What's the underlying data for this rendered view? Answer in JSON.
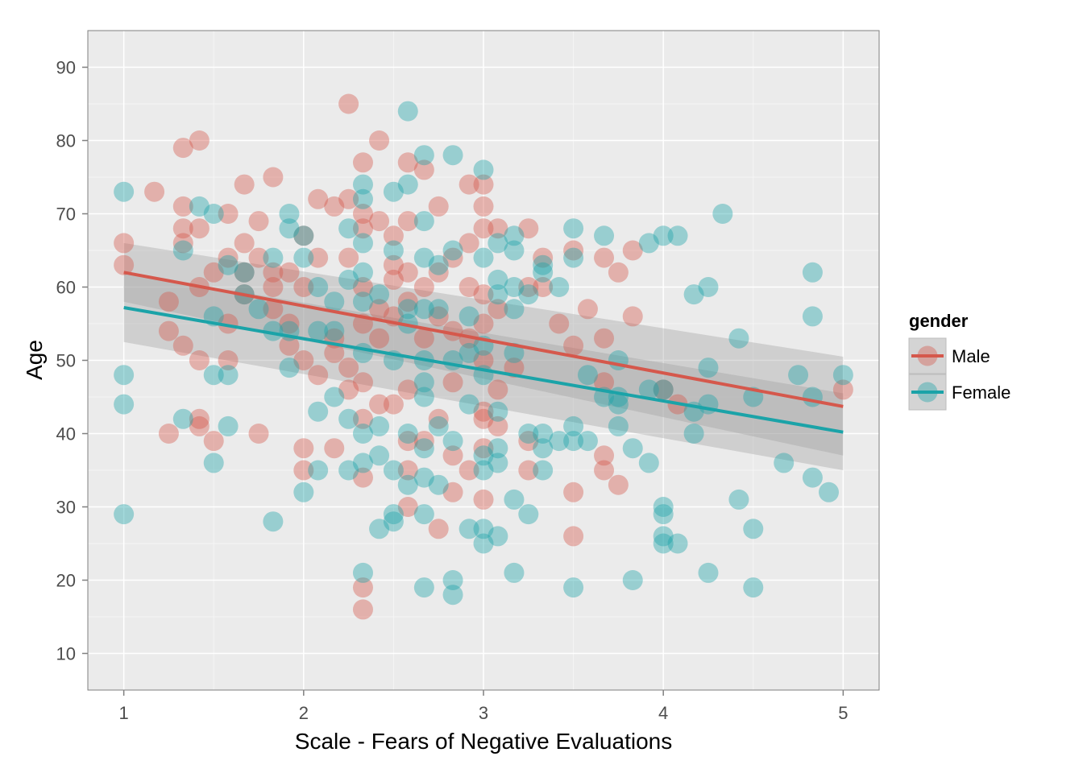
{
  "chart_data": {
    "type": "scatter",
    "xlabel": "Scale - Fears of Negative Evaluations",
    "ylabel": "Age",
    "xlim": [
      0.8,
      5.2
    ],
    "ylim": [
      5,
      95
    ],
    "xticks": [
      "1",
      "2",
      "3",
      "4",
      "5"
    ],
    "yticks": [
      "10",
      "20",
      "30",
      "40",
      "50",
      "60",
      "70",
      "80",
      "90"
    ],
    "grid": true,
    "legend": {
      "title": "gender",
      "position": "right"
    },
    "series": [
      {
        "name": "Male",
        "color": "#D5584C",
        "fit": {
          "x": [
            1,
            5
          ],
          "y": [
            62,
            43.7
          ],
          "ci_lower": [
            58,
            37
          ],
          "ci_upper": [
            66,
            50.5
          ]
        },
        "points": [
          [
            1,
            66
          ],
          [
            1,
            63
          ],
          [
            1.17,
            73
          ],
          [
            1.25,
            58
          ],
          [
            1.25,
            54
          ],
          [
            1.25,
            40
          ],
          [
            1.33,
            79
          ],
          [
            1.33,
            71
          ],
          [
            1.33,
            68
          ],
          [
            1.33,
            66
          ],
          [
            1.33,
            52
          ],
          [
            1.42,
            80
          ],
          [
            1.42,
            68
          ],
          [
            1.42,
            60
          ],
          [
            1.42,
            50
          ],
          [
            1.42,
            42
          ],
          [
            1.42,
            41
          ],
          [
            1.5,
            62
          ],
          [
            1.5,
            39
          ],
          [
            1.58,
            70
          ],
          [
            1.58,
            64
          ],
          [
            1.58,
            55
          ],
          [
            1.58,
            50
          ],
          [
            1.67,
            74
          ],
          [
            1.67,
            66
          ],
          [
            1.67,
            62
          ],
          [
            1.67,
            59
          ],
          [
            1.75,
            69
          ],
          [
            1.75,
            64
          ],
          [
            1.75,
            40
          ],
          [
            1.83,
            75
          ],
          [
            1.83,
            62
          ],
          [
            1.83,
            60
          ],
          [
            1.83,
            57
          ],
          [
            1.92,
            62
          ],
          [
            1.92,
            55
          ],
          [
            1.92,
            52
          ],
          [
            2,
            67
          ],
          [
            2,
            60
          ],
          [
            2,
            50
          ],
          [
            2,
            38
          ],
          [
            2,
            35
          ],
          [
            2.08,
            72
          ],
          [
            2.08,
            64
          ],
          [
            2.08,
            48
          ],
          [
            2.17,
            71
          ],
          [
            2.17,
            53
          ],
          [
            2.17,
            51
          ],
          [
            2.17,
            38
          ],
          [
            2.25,
            85
          ],
          [
            2.25,
            72
          ],
          [
            2.25,
            64
          ],
          [
            2.25,
            49
          ],
          [
            2.25,
            46
          ],
          [
            2.33,
            77
          ],
          [
            2.33,
            70
          ],
          [
            2.33,
            68
          ],
          [
            2.33,
            60
          ],
          [
            2.33,
            55
          ],
          [
            2.33,
            47
          ],
          [
            2.33,
            42
          ],
          [
            2.33,
            34
          ],
          [
            2.33,
            19
          ],
          [
            2.33,
            16
          ],
          [
            2.42,
            80
          ],
          [
            2.42,
            69
          ],
          [
            2.42,
            57
          ],
          [
            2.42,
            53
          ],
          [
            2.42,
            44
          ],
          [
            2.5,
            67
          ],
          [
            2.5,
            63
          ],
          [
            2.5,
            61
          ],
          [
            2.5,
            56
          ],
          [
            2.5,
            44
          ],
          [
            2.58,
            77
          ],
          [
            2.58,
            69
          ],
          [
            2.58,
            62
          ],
          [
            2.58,
            58
          ],
          [
            2.58,
            46
          ],
          [
            2.58,
            39
          ],
          [
            2.58,
            35
          ],
          [
            2.58,
            30
          ],
          [
            2.67,
            76
          ],
          [
            2.67,
            60
          ],
          [
            2.67,
            53
          ],
          [
            2.67,
            39
          ],
          [
            2.75,
            71
          ],
          [
            2.75,
            62
          ],
          [
            2.75,
            56
          ],
          [
            2.75,
            42
          ],
          [
            2.75,
            27
          ],
          [
            2.83,
            64
          ],
          [
            2.83,
            54
          ],
          [
            2.83,
            47
          ],
          [
            2.83,
            37
          ],
          [
            2.83,
            32
          ],
          [
            2.92,
            74
          ],
          [
            2.92,
            66
          ],
          [
            2.92,
            60
          ],
          [
            2.92,
            53
          ],
          [
            2.92,
            35
          ],
          [
            3,
            74
          ],
          [
            3,
            71
          ],
          [
            3,
            68
          ],
          [
            3,
            59
          ],
          [
            3,
            55
          ],
          [
            3,
            50
          ],
          [
            3,
            43
          ],
          [
            3,
            42
          ],
          [
            3,
            38
          ],
          [
            3,
            31
          ],
          [
            3.08,
            68
          ],
          [
            3.08,
            57
          ],
          [
            3.08,
            46
          ],
          [
            3.08,
            41
          ],
          [
            3.17,
            49
          ],
          [
            3.25,
            68
          ],
          [
            3.25,
            60
          ],
          [
            3.25,
            39
          ],
          [
            3.25,
            35
          ],
          [
            3.33,
            64
          ],
          [
            3.33,
            60
          ],
          [
            3.42,
            55
          ],
          [
            3.5,
            65
          ],
          [
            3.5,
            52
          ],
          [
            3.5,
            32
          ],
          [
            3.5,
            26
          ],
          [
            3.58,
            57
          ],
          [
            3.67,
            64
          ],
          [
            3.67,
            53
          ],
          [
            3.67,
            47
          ],
          [
            3.67,
            37
          ],
          [
            3.67,
            35
          ],
          [
            3.75,
            62
          ],
          [
            3.75,
            33
          ],
          [
            3.83,
            65
          ],
          [
            3.83,
            56
          ],
          [
            4,
            46
          ],
          [
            4.08,
            44
          ],
          [
            5,
            46
          ]
        ]
      },
      {
        "name": "Female",
        "color": "#1BA3A8",
        "fit": {
          "x": [
            1,
            5
          ],
          "y": [
            57.2,
            40.2
          ],
          "ci_lower": [
            52.5,
            35
          ],
          "ci_upper": [
            62,
            45.5
          ]
        },
        "points": [
          [
            1,
            73
          ],
          [
            1,
            48
          ],
          [
            1,
            44
          ],
          [
            1,
            29
          ],
          [
            1.33,
            65
          ],
          [
            1.33,
            42
          ],
          [
            1.42,
            71
          ],
          [
            1.5,
            70
          ],
          [
            1.5,
            56
          ],
          [
            1.5,
            48
          ],
          [
            1.5,
            36
          ],
          [
            1.58,
            63
          ],
          [
            1.58,
            48
          ],
          [
            1.58,
            41
          ],
          [
            1.67,
            62
          ],
          [
            1.67,
            59
          ],
          [
            1.75,
            57
          ],
          [
            1.83,
            64
          ],
          [
            1.83,
            54
          ],
          [
            1.83,
            28
          ],
          [
            1.92,
            70
          ],
          [
            1.92,
            68
          ],
          [
            1.92,
            54
          ],
          [
            1.92,
            49
          ],
          [
            2,
            67
          ],
          [
            2,
            64
          ],
          [
            2,
            32
          ],
          [
            2.08,
            60
          ],
          [
            2.08,
            54
          ],
          [
            2.08,
            43
          ],
          [
            2.08,
            35
          ],
          [
            2.17,
            58
          ],
          [
            2.17,
            54
          ],
          [
            2.17,
            45
          ],
          [
            2.25,
            68
          ],
          [
            2.25,
            61
          ],
          [
            2.25,
            42
          ],
          [
            2.25,
            35
          ],
          [
            2.33,
            74
          ],
          [
            2.33,
            72
          ],
          [
            2.33,
            66
          ],
          [
            2.33,
            62
          ],
          [
            2.33,
            58
          ],
          [
            2.33,
            51
          ],
          [
            2.33,
            40
          ],
          [
            2.33,
            36
          ],
          [
            2.33,
            21
          ],
          [
            2.42,
            59
          ],
          [
            2.42,
            41
          ],
          [
            2.42,
            37
          ],
          [
            2.42,
            27
          ],
          [
            2.5,
            73
          ],
          [
            2.5,
            65
          ],
          [
            2.5,
            50
          ],
          [
            2.5,
            35
          ],
          [
            2.5,
            29
          ],
          [
            2.5,
            28
          ],
          [
            2.58,
            84
          ],
          [
            2.58,
            74
          ],
          [
            2.58,
            57
          ],
          [
            2.58,
            55
          ],
          [
            2.58,
            40
          ],
          [
            2.58,
            33
          ],
          [
            2.67,
            78
          ],
          [
            2.67,
            69
          ],
          [
            2.67,
            64
          ],
          [
            2.67,
            57
          ],
          [
            2.67,
            50
          ],
          [
            2.67,
            47
          ],
          [
            2.67,
            45
          ],
          [
            2.67,
            38
          ],
          [
            2.67,
            34
          ],
          [
            2.67,
            29
          ],
          [
            2.67,
            19
          ],
          [
            2.75,
            63
          ],
          [
            2.75,
            57
          ],
          [
            2.75,
            41
          ],
          [
            2.75,
            33
          ],
          [
            2.83,
            78
          ],
          [
            2.83,
            65
          ],
          [
            2.83,
            50
          ],
          [
            2.83,
            39
          ],
          [
            2.83,
            20
          ],
          [
            2.83,
            18
          ],
          [
            2.92,
            56
          ],
          [
            2.92,
            51
          ],
          [
            2.92,
            44
          ],
          [
            2.92,
            27
          ],
          [
            3,
            76
          ],
          [
            3,
            64
          ],
          [
            3,
            52
          ],
          [
            3,
            48
          ],
          [
            3,
            37
          ],
          [
            3,
            35
          ],
          [
            3,
            27
          ],
          [
            3,
            25
          ],
          [
            3.08,
            66
          ],
          [
            3.08,
            61
          ],
          [
            3.08,
            59
          ],
          [
            3.08,
            43
          ],
          [
            3.08,
            38
          ],
          [
            3.08,
            36
          ],
          [
            3.08,
            26
          ],
          [
            3.17,
            67
          ],
          [
            3.17,
            65
          ],
          [
            3.17,
            60
          ],
          [
            3.17,
            57
          ],
          [
            3.17,
            51
          ],
          [
            3.17,
            31
          ],
          [
            3.17,
            21
          ],
          [
            3.25,
            59
          ],
          [
            3.25,
            40
          ],
          [
            3.25,
            29
          ],
          [
            3.33,
            63
          ],
          [
            3.33,
            62
          ],
          [
            3.33,
            40
          ],
          [
            3.33,
            38
          ],
          [
            3.33,
            35
          ],
          [
            3.42,
            60
          ],
          [
            3.42,
            39
          ],
          [
            3.5,
            68
          ],
          [
            3.5,
            64
          ],
          [
            3.5,
            41
          ],
          [
            3.5,
            39
          ],
          [
            3.5,
            19
          ],
          [
            3.58,
            48
          ],
          [
            3.58,
            39
          ],
          [
            3.67,
            67
          ],
          [
            3.67,
            45
          ],
          [
            3.75,
            50
          ],
          [
            3.75,
            45
          ],
          [
            3.75,
            44
          ],
          [
            3.75,
            41
          ],
          [
            3.83,
            38
          ],
          [
            3.83,
            20
          ],
          [
            3.92,
            66
          ],
          [
            3.92,
            46
          ],
          [
            3.92,
            36
          ],
          [
            4,
            67
          ],
          [
            4,
            46
          ],
          [
            4,
            30
          ],
          [
            4,
            29
          ],
          [
            4,
            26
          ],
          [
            4,
            25
          ],
          [
            4.08,
            67
          ],
          [
            4.08,
            25
          ],
          [
            4.17,
            59
          ],
          [
            4.17,
            43
          ],
          [
            4.17,
            40
          ],
          [
            4.25,
            60
          ],
          [
            4.25,
            49
          ],
          [
            4.25,
            44
          ],
          [
            4.25,
            21
          ],
          [
            4.33,
            70
          ],
          [
            4.42,
            53
          ],
          [
            4.42,
            31
          ],
          [
            4.5,
            45
          ],
          [
            4.5,
            27
          ],
          [
            4.5,
            19
          ],
          [
            4.67,
            36
          ],
          [
            4.75,
            48
          ],
          [
            4.83,
            62
          ],
          [
            4.83,
            56
          ],
          [
            4.83,
            45
          ],
          [
            4.83,
            34
          ],
          [
            4.92,
            32
          ],
          [
            5,
            48
          ]
        ]
      }
    ]
  }
}
